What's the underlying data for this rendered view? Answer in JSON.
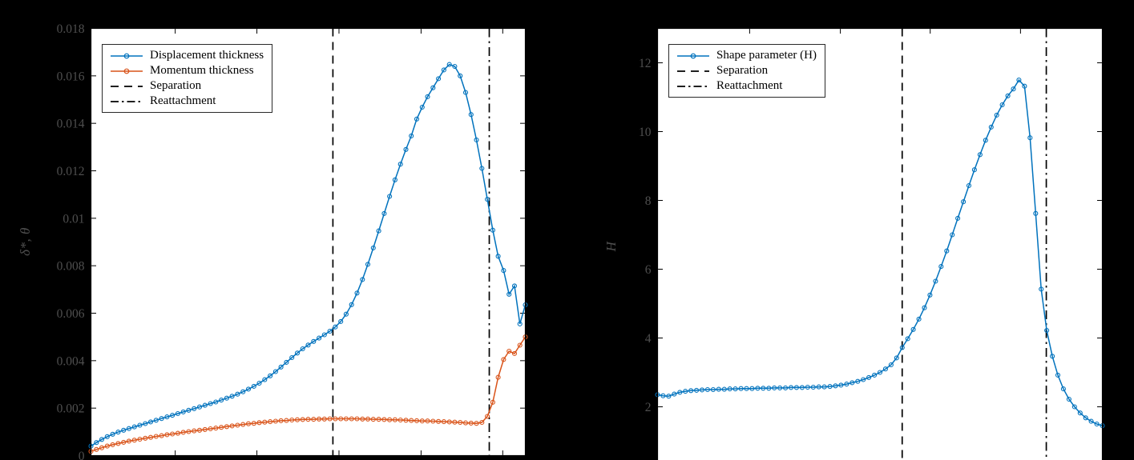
{
  "style": {
    "background": "#000000",
    "plot_background": "#ffffff",
    "axis_color": "#000000",
    "tick_label_color": "#4f4f4f",
    "legend_text_color": "#000000",
    "legend_background": "#ffffff",
    "legend_border_color": "#2a2a2a",
    "matlab_blue": "#0072BD",
    "matlab_orange": "#D95319"
  },
  "chart_data": [
    {
      "type": "line",
      "title": "",
      "xlabel": "",
      "ylabel": "δ*, θ",
      "ylim": [
        0,
        0.018
      ],
      "yticks": [
        0,
        0.002,
        0.004,
        0.006,
        0.008,
        0.01,
        0.012,
        0.014,
        0.016,
        0.018
      ],
      "ytick_labels": [
        "0",
        "0.002",
        "0.004",
        "0.006",
        "0.008",
        "0.01",
        "0.012",
        "0.014",
        "0.016",
        "0.018"
      ],
      "xtick_positions": [
        0.194,
        0.382,
        0.571,
        0.76,
        0.948
      ],
      "legend": {
        "position": "northwest",
        "entries": [
          "Displacement thickness",
          "Momentum thickness",
          "Separation",
          "Reattachment"
        ]
      },
      "series": [
        {
          "name": "Displacement thickness",
          "color": "#0072BD",
          "marker": "o",
          "x_start": 0,
          "x_step": 0.0125,
          "y": [
            0.0004,
            0.00055,
            0.00068,
            0.0008,
            0.0009,
            0.00099,
            0.00107,
            0.00114,
            0.00121,
            0.00128,
            0.00135,
            0.00142,
            0.00149,
            0.00156,
            0.00163,
            0.0017,
            0.00177,
            0.00184,
            0.00191,
            0.00198,
            0.00205,
            0.00212,
            0.00219,
            0.00226,
            0.00234,
            0.00242,
            0.0025,
            0.00259,
            0.00269,
            0.0028,
            0.00292,
            0.00305,
            0.0032,
            0.00336,
            0.00354,
            0.00373,
            0.00393,
            0.00413,
            0.00432,
            0.0045,
            0.00466,
            0.00481,
            0.00495,
            0.00509,
            0.00524,
            0.00542,
            0.00565,
            0.00596,
            0.00636,
            0.00685,
            0.00742,
            0.00806,
            0.00875,
            0.00947,
            0.0102,
            0.01092,
            0.01162,
            0.01228,
            0.0129,
            0.01347,
            0.01418,
            0.01468,
            0.01512,
            0.0155,
            0.01588,
            0.01625,
            0.01648,
            0.0164,
            0.016,
            0.0153,
            0.01437,
            0.0133,
            0.0121,
            0.0108,
            0.0095,
            0.0084,
            0.0078,
            0.0068,
            0.00715,
            0.00555,
            0.00635
          ]
        },
        {
          "name": "Momentum thickness",
          "color": "#D95319",
          "marker": "o",
          "x_start": 0,
          "x_step": 0.0125,
          "y": [
            0.00018,
            0.00026,
            0.00033,
            0.0004,
            0.00046,
            0.00051,
            0.00056,
            0.00061,
            0.00065,
            0.00069,
            0.00073,
            0.00077,
            0.00081,
            0.00084,
            0.00088,
            0.00091,
            0.00094,
            0.00098,
            0.00101,
            0.00104,
            0.00107,
            0.0011,
            0.00113,
            0.00116,
            0.00119,
            0.00122,
            0.00125,
            0.00128,
            0.00131,
            0.00134,
            0.00136,
            0.00139,
            0.00141,
            0.00143,
            0.00145,
            0.00147,
            0.00148,
            0.0015,
            0.00151,
            0.00152,
            0.00153,
            0.00153,
            0.00154,
            0.00154,
            0.00155,
            0.00155,
            0.00155,
            0.00155,
            0.00155,
            0.00155,
            0.00154,
            0.00154,
            0.00153,
            0.00153,
            0.00152,
            0.00151,
            0.00151,
            0.0015,
            0.00149,
            0.00148,
            0.00147,
            0.00146,
            0.00146,
            0.00145,
            0.00144,
            0.00143,
            0.00142,
            0.00141,
            0.0014,
            0.00138,
            0.00137,
            0.00136,
            0.0014,
            0.00165,
            0.00225,
            0.0033,
            0.00405,
            0.0044,
            0.0043,
            0.00465,
            0.005
          ]
        }
      ],
      "vlines": [
        {
          "name": "Separation",
          "x": 0.557,
          "style": "dashed",
          "color": "#000000"
        },
        {
          "name": "Reattachment",
          "x": 0.917,
          "style": "dashdot",
          "color": "#000000"
        }
      ]
    },
    {
      "type": "line",
      "title": "",
      "xlabel": "",
      "ylabel": "H",
      "ylim": [
        0,
        13
      ],
      "yticks": [
        2,
        4,
        6,
        8,
        10,
        12
      ],
      "ytick_labels": [
        "2",
        "4",
        "6",
        "8",
        "10",
        "12"
      ],
      "xtick_positions": [
        0.207,
        0.411,
        0.613,
        0.816
      ],
      "legend": {
        "position": "northwest",
        "entries": [
          "Shape parameter (H)",
          "Separation",
          "Reattachment"
        ]
      },
      "series": [
        {
          "name": "Shape parameter (H)",
          "color": "#0072BD",
          "marker": "o",
          "x_start": 0,
          "x_step": 0.0125,
          "y": [
            2.35,
            2.32,
            2.31,
            2.37,
            2.42,
            2.45,
            2.47,
            2.48,
            2.49,
            2.5,
            2.5,
            2.51,
            2.51,
            2.52,
            2.52,
            2.53,
            2.53,
            2.53,
            2.54,
            2.54,
            2.54,
            2.55,
            2.55,
            2.55,
            2.56,
            2.56,
            2.56,
            2.57,
            2.57,
            2.58,
            2.58,
            2.59,
            2.61,
            2.63,
            2.66,
            2.7,
            2.74,
            2.79,
            2.85,
            2.92,
            3.0,
            3.1,
            3.22,
            3.42,
            3.72,
            3.98,
            4.25,
            4.55,
            4.88,
            5.25,
            5.65,
            6.08,
            6.53,
            7.0,
            7.48,
            7.96,
            8.43,
            8.89,
            9.33,
            9.75,
            10.13,
            10.48,
            10.78,
            11.04,
            11.24,
            11.5,
            11.32,
            9.82,
            7.62,
            5.42,
            4.22,
            3.47,
            2.92,
            2.52,
            2.22,
            2.0,
            1.82,
            1.68,
            1.58,
            1.5,
            1.45
          ]
        }
      ],
      "vlines": [
        {
          "name": "Separation",
          "x": 0.55,
          "style": "dashed",
          "color": "#000000"
        },
        {
          "name": "Reattachment",
          "x": 0.874,
          "style": "dashdot",
          "color": "#000000"
        }
      ]
    }
  ]
}
